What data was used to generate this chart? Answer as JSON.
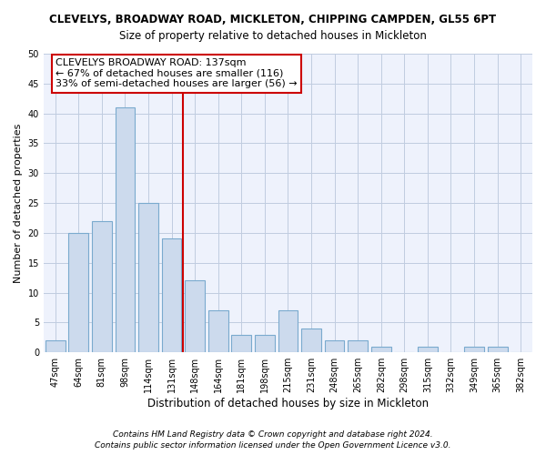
{
  "title": "CLEVELYS, BROADWAY ROAD, MICKLETON, CHIPPING CAMPDEN, GL55 6PT",
  "subtitle": "Size of property relative to detached houses in Mickleton",
  "xlabel": "Distribution of detached houses by size in Mickleton",
  "ylabel": "Number of detached properties",
  "categories": [
    "47sqm",
    "64sqm",
    "81sqm",
    "98sqm",
    "114sqm",
    "131sqm",
    "148sqm",
    "164sqm",
    "181sqm",
    "198sqm",
    "215sqm",
    "231sqm",
    "248sqm",
    "265sqm",
    "282sqm",
    "298sqm",
    "315sqm",
    "332sqm",
    "349sqm",
    "365sqm",
    "382sqm"
  ],
  "values": [
    2,
    20,
    22,
    41,
    25,
    19,
    12,
    7,
    3,
    3,
    7,
    4,
    2,
    2,
    1,
    0,
    1,
    0,
    1,
    1,
    0
  ],
  "bar_color": "#ccdaed",
  "bar_edge_color": "#7aaace",
  "vline_color": "#cc0000",
  "vline_pos": 5.5,
  "annotation_line1": "CLEVELYS BROADWAY ROAD: 137sqm",
  "annotation_line2": "← 67% of detached houses are smaller (116)",
  "annotation_line3": "33% of semi-detached houses are larger (56) →",
  "annotation_box_facecolor": "#ffffff",
  "annotation_box_edgecolor": "#cc0000",
  "ylim": [
    0,
    50
  ],
  "yticks": [
    0,
    5,
    10,
    15,
    20,
    25,
    30,
    35,
    40,
    45,
    50
  ],
  "footer_line1": "Contains HM Land Registry data © Crown copyright and database right 2024.",
  "footer_line2": "Contains public sector information licensed under the Open Government Licence v3.0.",
  "bg_color": "#eef2fc",
  "grid_color": "#c0cce0",
  "title_fontsize": 8.5,
  "subtitle_fontsize": 8.5,
  "tick_fontsize": 7,
  "ylabel_fontsize": 8,
  "xlabel_fontsize": 8.5,
  "annotation_fontsize": 8,
  "footer_fontsize": 6.5
}
